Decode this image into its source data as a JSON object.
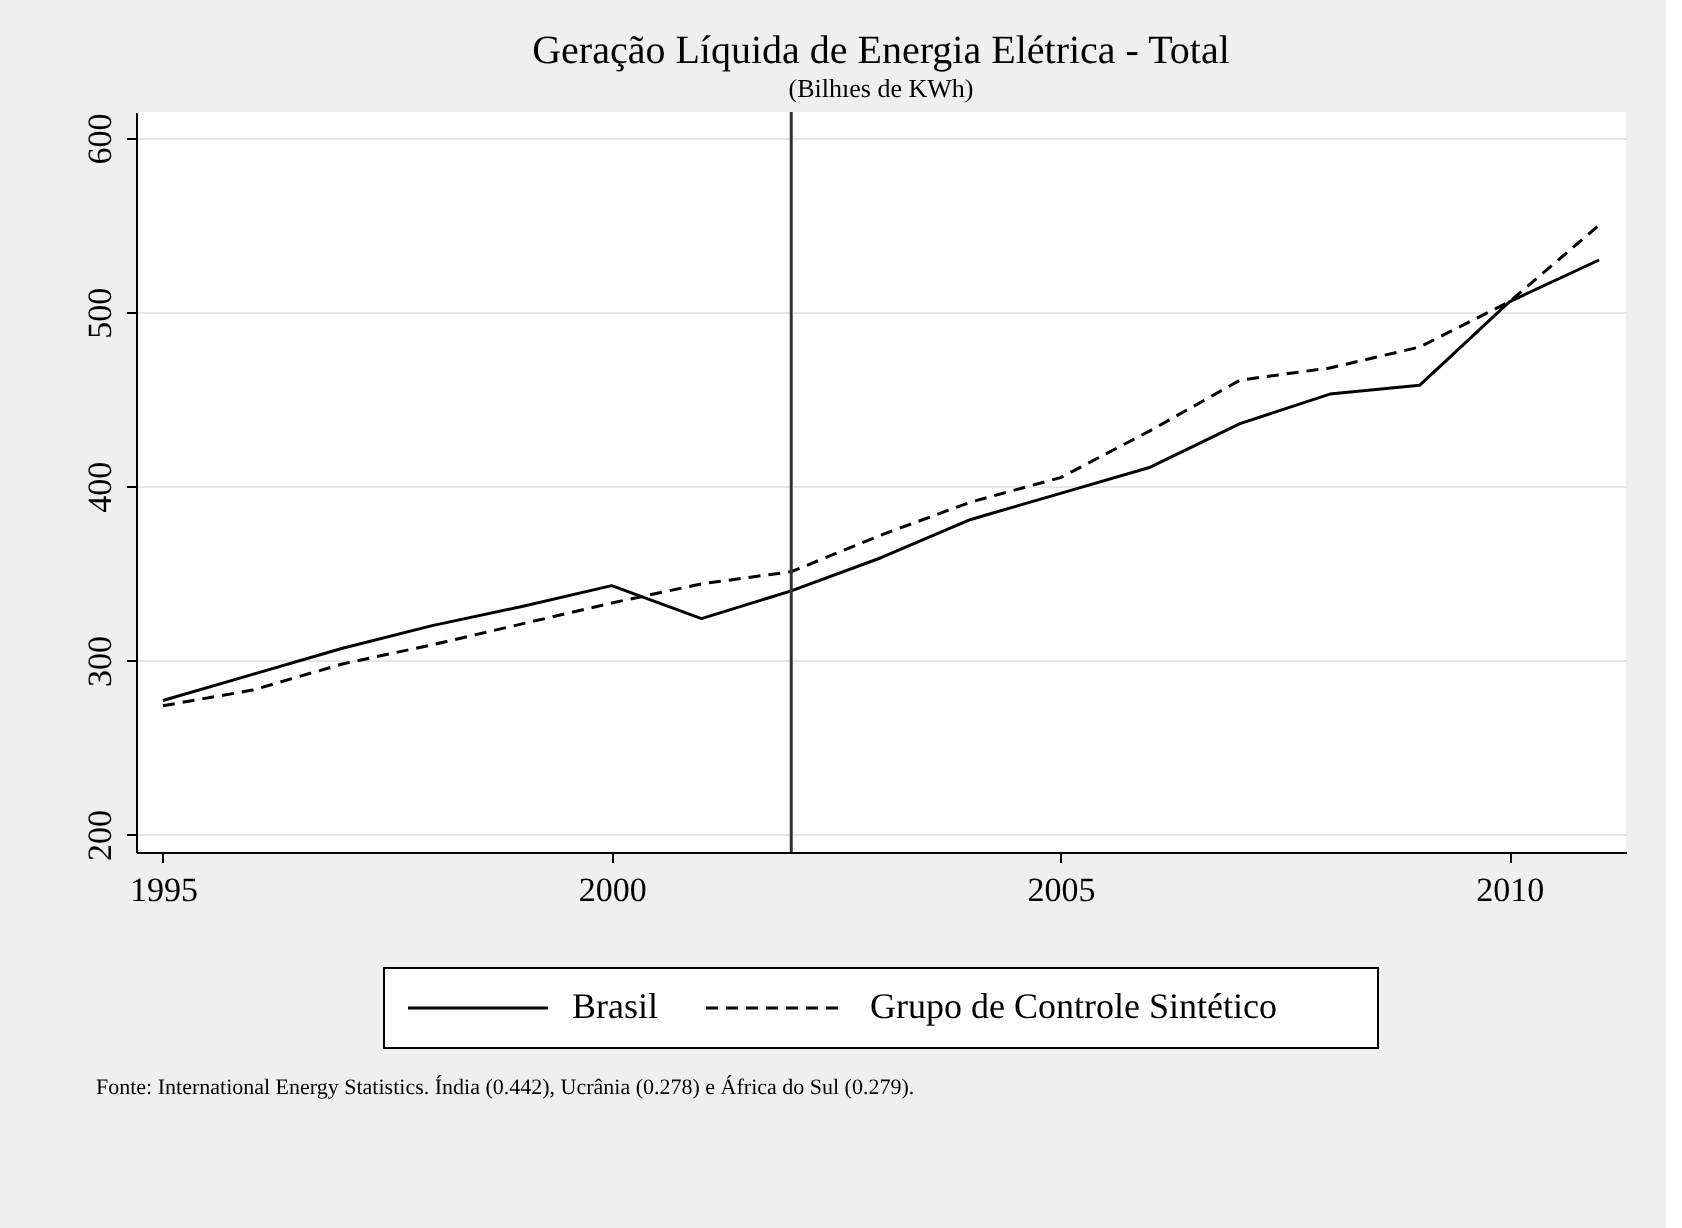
{
  "chart_data": {
    "type": "line",
    "title": "Geração Líquida de Energia Elétrica - Total",
    "subtitle": "(Bilhıes de KWh)",
    "x": [
      1995,
      1996,
      1997,
      1998,
      1999,
      2000,
      2001,
      2002,
      2003,
      2004,
      2005,
      2006,
      2007,
      2008,
      2009,
      2010,
      2011
    ],
    "series": [
      {
        "name": "Brasil",
        "color": "#000000",
        "line_style": "solid",
        "values": [
          277,
          292,
          307,
          320,
          331,
          343,
          324,
          340,
          359,
          381,
          396,
          411,
          436,
          453,
          458,
          506,
          530
        ]
      },
      {
        "name": "Grupo de Controle Sintético",
        "color": "#000000",
        "line_style": "dashed",
        "values": [
          274,
          283,
          298,
          309,
          321,
          333,
          344,
          351,
          372,
          391,
          405,
          432,
          461,
          468,
          480,
          506,
          550
        ]
      }
    ],
    "xlim": [
      1994.7,
      2011.3
    ],
    "xticks": [
      1995,
      2000,
      2005,
      2010
    ],
    "ylim": [
      190,
      615
    ],
    "yticks": [
      200,
      300,
      400,
      500,
      600
    ],
    "grid": "y",
    "legend": "bottom",
    "ref_lines": [
      {
        "axis": "x",
        "value": 2002,
        "color": "#333333"
      }
    ],
    "annotations": [
      "Fonte: International Energy Statistics. Índia (0.442), Ucrânia (0.278) e África do Sul (0.279)."
    ]
  }
}
